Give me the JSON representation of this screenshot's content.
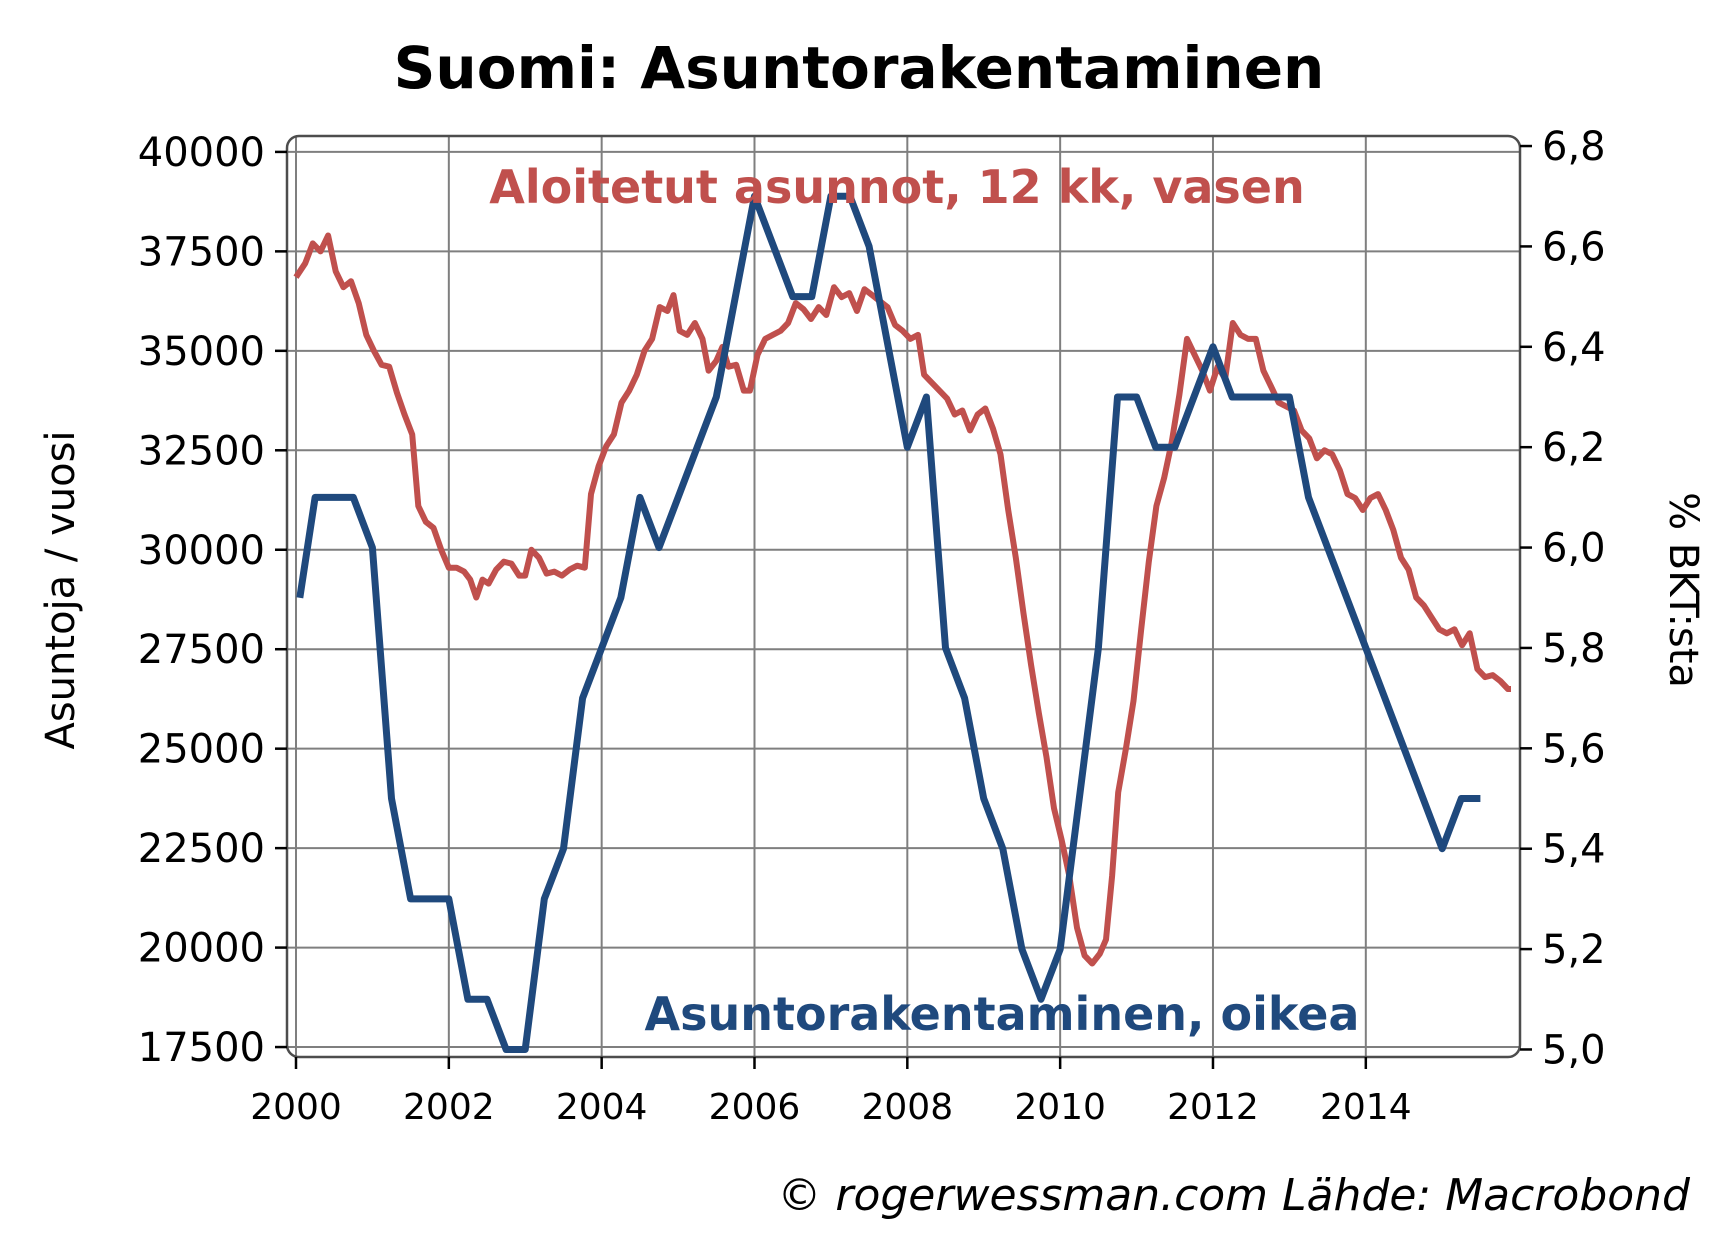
{
  "chart_data": {
    "type": "line",
    "title": "Suomi: Asuntorakentaminen",
    "ylabel_left": "Asuntoja / vuosi",
    "ylabel_right": "% BKT:sta",
    "credit": "© rogerwessman.com Lähde: Macrobond",
    "xlim": [
      2000,
      2015.9
    ],
    "ylim_left": [
      17250,
      40400
    ],
    "ylim_right": [
      4.985,
      6.82
    ],
    "xticks": [
      2000,
      2002,
      2004,
      2006,
      2008,
      2010,
      2012,
      2014
    ],
    "xtick_labels": [
      "2000",
      "2002",
      "2004",
      "2006",
      "2008",
      "2010",
      "2012",
      "2014"
    ],
    "yticks_left": [
      17500,
      20000,
      22500,
      25000,
      27500,
      30000,
      32500,
      35000,
      37500,
      40000
    ],
    "yticks_left_labels": [
      "17500",
      "20000",
      "22500",
      "25000",
      "27500",
      "30000",
      "32500",
      "35000",
      "37500",
      "40000"
    ],
    "yticks_right": [
      5.0,
      5.2,
      5.4,
      5.6,
      5.8,
      6.0,
      6.2,
      6.4,
      6.6,
      6.8
    ],
    "yticks_right_labels": [
      "5,0",
      "5,2",
      "5,4",
      "5,6",
      "5,8",
      "6,0",
      "6,2",
      "6,4",
      "6,6",
      "6,8"
    ],
    "grid": true,
    "series": [
      {
        "name": "Aloitetut asunnot, 12 kk, vasen",
        "axis": "left",
        "color": "#c0504d",
        "points": [
          [
            2000.0,
            36850
          ],
          [
            2000.12,
            37200
          ],
          [
            2000.22,
            37700
          ],
          [
            2000.32,
            37500
          ],
          [
            2000.42,
            37900
          ],
          [
            2000.52,
            37000
          ],
          [
            2000.62,
            36600
          ],
          [
            2000.72,
            36750
          ],
          [
            2000.82,
            36200
          ],
          [
            2000.92,
            35400
          ],
          [
            2001.02,
            35000
          ],
          [
            2001.12,
            34650
          ],
          [
            2001.22,
            34600
          ],
          [
            2001.32,
            33950
          ],
          [
            2001.42,
            33400
          ],
          [
            2001.52,
            32900
          ],
          [
            2001.6,
            31100
          ],
          [
            2001.7,
            30700
          ],
          [
            2001.8,
            30550
          ],
          [
            2001.9,
            30000
          ],
          [
            2002.0,
            29550
          ],
          [
            2002.1,
            29550
          ],
          [
            2002.2,
            29450
          ],
          [
            2002.28,
            29250
          ],
          [
            2002.36,
            28800
          ],
          [
            2002.44,
            29250
          ],
          [
            2002.52,
            29150
          ],
          [
            2002.62,
            29500
          ],
          [
            2002.72,
            29700
          ],
          [
            2002.82,
            29650
          ],
          [
            2002.92,
            29350
          ],
          [
            2003.0,
            29350
          ],
          [
            2003.08,
            30000
          ],
          [
            2003.18,
            29800
          ],
          [
            2003.28,
            29400
          ],
          [
            2003.38,
            29450
          ],
          [
            2003.48,
            29350
          ],
          [
            2003.58,
            29500
          ],
          [
            2003.68,
            29600
          ],
          [
            2003.78,
            29550
          ],
          [
            2003.86,
            31400
          ],
          [
            2003.96,
            32100
          ],
          [
            2004.06,
            32600
          ],
          [
            2004.16,
            32900
          ],
          [
            2004.26,
            33700
          ],
          [
            2004.36,
            34000
          ],
          [
            2004.46,
            34400
          ],
          [
            2004.56,
            35000
          ],
          [
            2004.66,
            35300
          ],
          [
            2004.76,
            36100
          ],
          [
            2004.86,
            36000
          ],
          [
            2004.94,
            36400
          ],
          [
            2005.02,
            35500
          ],
          [
            2005.12,
            35400
          ],
          [
            2005.22,
            35700
          ],
          [
            2005.32,
            35300
          ],
          [
            2005.4,
            34500
          ],
          [
            2005.5,
            34750
          ],
          [
            2005.58,
            35100
          ],
          [
            2005.66,
            34600
          ],
          [
            2005.76,
            34650
          ],
          [
            2005.86,
            34000
          ],
          [
            2005.94,
            34000
          ],
          [
            2006.04,
            34900
          ],
          [
            2006.14,
            35300
          ],
          [
            2006.24,
            35400
          ],
          [
            2006.34,
            35500
          ],
          [
            2006.44,
            35700
          ],
          [
            2006.54,
            36200
          ],
          [
            2006.64,
            36050
          ],
          [
            2006.74,
            35800
          ],
          [
            2006.84,
            36100
          ],
          [
            2006.94,
            35900
          ],
          [
            2007.04,
            36600
          ],
          [
            2007.14,
            36350
          ],
          [
            2007.24,
            36450
          ],
          [
            2007.34,
            36000
          ],
          [
            2007.44,
            36550
          ],
          [
            2007.54,
            36400
          ],
          [
            2007.64,
            36250
          ],
          [
            2007.74,
            36100
          ],
          [
            2007.84,
            35650
          ],
          [
            2007.94,
            35500
          ],
          [
            2008.04,
            35300
          ],
          [
            2008.14,
            35400
          ],
          [
            2008.22,
            34400
          ],
          [
            2008.32,
            34200
          ],
          [
            2008.42,
            34000
          ],
          [
            2008.52,
            33800
          ],
          [
            2008.62,
            33400
          ],
          [
            2008.72,
            33500
          ],
          [
            2008.82,
            33000
          ],
          [
            2008.92,
            33400
          ],
          [
            2009.02,
            33550
          ],
          [
            2009.12,
            33050
          ],
          [
            2009.22,
            32400
          ],
          [
            2009.32,
            31000
          ],
          [
            2009.42,
            29800
          ],
          [
            2009.52,
            28400
          ],
          [
            2009.62,
            27100
          ],
          [
            2009.72,
            25900
          ],
          [
            2009.82,
            24800
          ],
          [
            2009.92,
            23500
          ],
          [
            2010.02,
            22700
          ],
          [
            2010.12,
            21800
          ],
          [
            2010.22,
            20500
          ],
          [
            2010.32,
            19800
          ],
          [
            2010.42,
            19600
          ],
          [
            2010.52,
            19850
          ],
          [
            2010.6,
            20200
          ],
          [
            2010.68,
            21800
          ],
          [
            2010.76,
            23900
          ],
          [
            2010.86,
            25000
          ],
          [
            2010.96,
            26200
          ],
          [
            2011.06,
            28000
          ],
          [
            2011.16,
            29700
          ],
          [
            2011.26,
            31100
          ],
          [
            2011.36,
            31800
          ],
          [
            2011.46,
            32700
          ],
          [
            2011.56,
            33900
          ],
          [
            2011.66,
            35300
          ],
          [
            2011.76,
            34900
          ],
          [
            2011.86,
            34500
          ],
          [
            2011.96,
            34000
          ],
          [
            2012.06,
            34600
          ],
          [
            2012.16,
            34300
          ],
          [
            2012.26,
            35700
          ],
          [
            2012.36,
            35400
          ],
          [
            2012.46,
            35300
          ],
          [
            2012.56,
            35300
          ],
          [
            2012.66,
            34500
          ],
          [
            2012.76,
            34100
          ],
          [
            2012.86,
            33700
          ],
          [
            2012.96,
            33600
          ],
          [
            2013.06,
            33500
          ],
          [
            2013.16,
            33000
          ],
          [
            2013.26,
            32800
          ],
          [
            2013.36,
            32300
          ],
          [
            2013.46,
            32500
          ],
          [
            2013.56,
            32400
          ],
          [
            2013.66,
            32000
          ],
          [
            2013.76,
            31400
          ],
          [
            2013.86,
            31300
          ],
          [
            2013.96,
            31000
          ],
          [
            2014.06,
            31300
          ],
          [
            2014.16,
            31400
          ],
          [
            2014.26,
            31000
          ],
          [
            2014.36,
            30500
          ],
          [
            2014.46,
            29800
          ],
          [
            2014.56,
            29500
          ],
          [
            2014.66,
            28800
          ],
          [
            2014.76,
            28600
          ],
          [
            2014.86,
            28300
          ],
          [
            2014.96,
            28000
          ],
          [
            2015.06,
            27900
          ],
          [
            2015.16,
            28000
          ],
          [
            2015.26,
            27600
          ],
          [
            2015.36,
            27900
          ],
          [
            2015.46,
            27000
          ],
          [
            2015.56,
            26800
          ],
          [
            2015.66,
            26850
          ],
          [
            2015.76,
            26700
          ],
          [
            2015.86,
            26500
          ],
          [
            2015.9,
            26500
          ]
        ]
      },
      {
        "name": "Asuntorakentaminen, oikea",
        "axis": "right",
        "color": "#1f497d",
        "points": [
          [
            2000.05,
            5.9
          ],
          [
            2000.25,
            6.1
          ],
          [
            2000.75,
            6.1
          ],
          [
            2001.0,
            6.0
          ],
          [
            2001.25,
            5.5
          ],
          [
            2001.5,
            5.3
          ],
          [
            2002.0,
            5.3
          ],
          [
            2002.25,
            5.1
          ],
          [
            2002.5,
            5.1
          ],
          [
            2002.75,
            5.0
          ],
          [
            2003.0,
            5.0
          ],
          [
            2003.25,
            5.3
          ],
          [
            2003.5,
            5.4
          ],
          [
            2003.75,
            5.7
          ],
          [
            2004.25,
            5.9
          ],
          [
            2004.5,
            6.1
          ],
          [
            2004.75,
            6.0
          ],
          [
            2005.5,
            6.3
          ],
          [
            2006.0,
            6.7
          ],
          [
            2006.5,
            6.5
          ],
          [
            2006.75,
            6.5
          ],
          [
            2007.0,
            6.7
          ],
          [
            2007.25,
            6.7
          ],
          [
            2007.5,
            6.6
          ],
          [
            2008.0,
            6.2
          ],
          [
            2008.25,
            6.3
          ],
          [
            2008.5,
            5.8
          ],
          [
            2008.75,
            5.7
          ],
          [
            2009.0,
            5.5
          ],
          [
            2009.25,
            5.4
          ],
          [
            2009.5,
            5.2
          ],
          [
            2009.75,
            5.1
          ],
          [
            2010.0,
            5.2
          ],
          [
            2010.5,
            5.8
          ],
          [
            2010.75,
            6.3
          ],
          [
            2011.0,
            6.3
          ],
          [
            2011.25,
            6.2
          ],
          [
            2011.5,
            6.2
          ],
          [
            2012.0,
            6.4
          ],
          [
            2012.25,
            6.3
          ],
          [
            2013.0,
            6.3
          ],
          [
            2013.25,
            6.1
          ],
          [
            2015.0,
            5.4
          ],
          [
            2015.25,
            5.5
          ],
          [
            2015.5,
            5.5
          ]
        ]
      }
    ]
  }
}
